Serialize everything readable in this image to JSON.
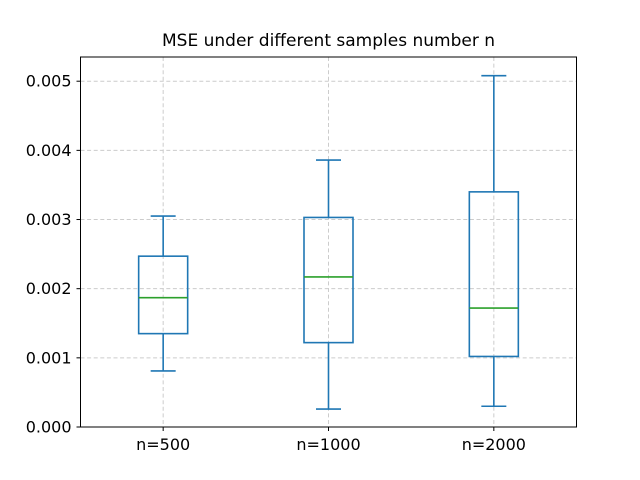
{
  "figure": {
    "title": "MSE under different samples number n"
  },
  "chart_data": {
    "type": "boxplot",
    "title": "MSE under different samples number n",
    "xlabel": "",
    "ylabel": "",
    "categories": [
      "n=500",
      "n=1000",
      "n=2000"
    ],
    "series": [
      {
        "name": "n=500",
        "whisker_low": 0.00081,
        "q1": 0.00135,
        "median": 0.00187,
        "q3": 0.00247,
        "whisker_high": 0.00305
      },
      {
        "name": "n=1000",
        "whisker_low": 0.00026,
        "q1": 0.00122,
        "median": 0.00217,
        "q3": 0.00303,
        "whisker_high": 0.00386
      },
      {
        "name": "n=2000",
        "whisker_low": 0.0003,
        "q1": 0.00102,
        "median": 0.00172,
        "q3": 0.0034,
        "whisker_high": 0.00508
      }
    ],
    "ylim": [
      0,
      0.00535
    ],
    "yticks": [
      0,
      0.001,
      0.002,
      0.003,
      0.004,
      0.005
    ],
    "ytick_labels": [
      "0.000",
      "0.001",
      "0.002",
      "0.003",
      "0.004",
      "0.005"
    ],
    "grid": true,
    "grid_style": "dashed",
    "legend_position": "none",
    "colors": {
      "box": "#1f77b4",
      "median": "#2ca02c",
      "grid": "#cccccc",
      "spine": "#000000",
      "text": "#000000",
      "background": "#ffffff"
    }
  }
}
